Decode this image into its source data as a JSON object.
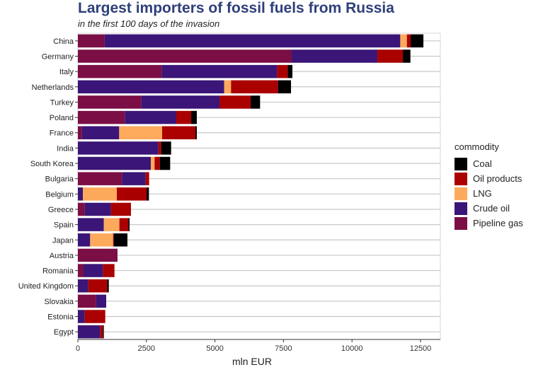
{
  "chart_data": {
    "type": "bar",
    "orientation": "horizontal",
    "stacked": true,
    "title": "Largest importers of fossil fuels from Russia",
    "subtitle": "in the first 100 days of the invasion",
    "xlabel": "mln EUR",
    "ylabel": "",
    "xlim": [
      0,
      13200
    ],
    "xticks": [
      0,
      2500,
      5000,
      7500,
      10000,
      12500
    ],
    "xtick_labels": [
      "0",
      "2500",
      "5000",
      "7500",
      "10000",
      "12500"
    ],
    "grid": true,
    "legend": {
      "title": "commodity",
      "placement": "right"
    },
    "categories": [
      "China",
      "Germany",
      "Italy",
      "Netherlands",
      "Turkey",
      "Poland",
      "France",
      "India",
      "South Korea",
      "Bulgaria",
      "Belgium",
      "Greece",
      "Spain",
      "Japan",
      "Austria",
      "Romania",
      "United Kingdom",
      "Slovakia",
      "Estonia",
      "Egypt"
    ],
    "series": [
      {
        "name": "Pipeline gas",
        "color": "#7b0e45",
        "values": [
          973,
          7800,
          3057,
          0,
          2316,
          1722,
          146,
          0,
          0,
          1610,
          0,
          250,
          0,
          0,
          1446,
          207,
          0,
          663,
          0,
          0
        ]
      },
      {
        "name": "Crude oil",
        "color": "#3b1577",
        "values": [
          10788,
          3126,
          4210,
          5338,
          2850,
          1868,
          1361,
          2936,
          2660,
          861,
          181,
          955,
          947,
          448,
          0,
          706,
          379,
          370,
          250,
          809
        ]
      },
      {
        "name": "LNG",
        "color": "#fdaa5c",
        "values": [
          241,
          0,
          0,
          250,
          0,
          0,
          1567,
          0,
          138,
          0,
          1240,
          0,
          568,
          835,
          0,
          0,
          0,
          0,
          0,
          0
        ]
      },
      {
        "name": "Oil products",
        "color": "#aa0000",
        "values": [
          138,
          930,
          387,
          1713,
          1137,
          543,
          1214,
          103,
          190,
          129,
          1085,
          732,
          328,
          26,
          0,
          422,
          689,
          0,
          749,
          104
        ]
      },
      {
        "name": "Coal",
        "color": "#000000",
        "values": [
          465,
          275,
          172,
          474,
          344,
          206,
          51,
          362,
          379,
          0,
          86,
          0,
          43,
          499,
          0,
          0,
          60,
          0,
          0,
          34
        ]
      }
    ],
    "legend_order": [
      "Coal",
      "Oil products",
      "LNG",
      "Crude oil",
      "Pipeline gas"
    ]
  }
}
